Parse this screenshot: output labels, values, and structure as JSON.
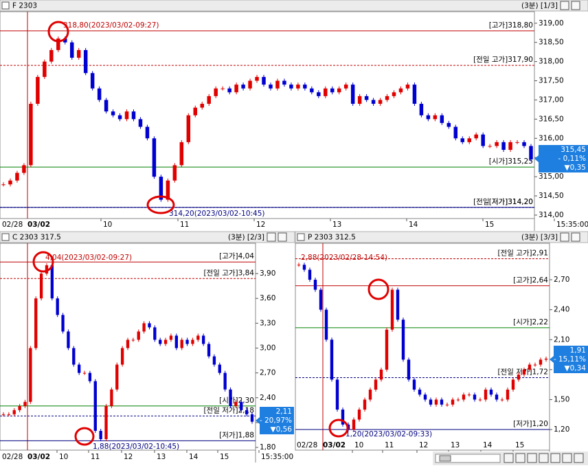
{
  "windows": [
    {
      "title": "F 2303",
      "period": "(3분) [1/3]",
      "ylim": [
        313.91,
        319.3
      ],
      "yticks": [
        {
          "value": 319,
          "label": "319,00"
        },
        {
          "value": 318.5,
          "label": "318,50"
        },
        {
          "value": 318,
          "label": "318,00"
        },
        {
          "value": 317.5,
          "label": "317,50"
        },
        {
          "value": 317,
          "label": "317,00"
        },
        {
          "value": 316.5,
          "label": "316,50"
        },
        {
          "value": 316,
          "label": "316,00"
        },
        {
          "value": 315.5,
          "label": "315,50"
        },
        {
          "value": 315,
          "label": "315,00"
        },
        {
          "value": 314.5,
          "label": "314,50"
        },
        {
          "value": 314,
          "label": "314,00"
        }
      ],
      "xlabels": [
        "02/28",
        "03/02",
        "10",
        "11",
        "12",
        "13",
        "14",
        "15",
        "15:35:00"
      ],
      "reflines": [
        {
          "label": "[고가]318,80",
          "value": 318.8,
          "color": "#c00000",
          "style": "solid"
        },
        {
          "label": "[전일 고가]317,90",
          "value": 317.9,
          "color": "#c00000",
          "style": "dashed"
        },
        {
          "label": "[시가]315,25",
          "value": 315.25,
          "color": "#008000",
          "style": "solid"
        },
        {
          "label": "[저가]314,20",
          "value": 314.2,
          "color": "#000080",
          "style": "solid"
        },
        {
          "label": "[전일 저가]314,20",
          "value": 314.2,
          "color": "#000080",
          "style": "dashed"
        }
      ],
      "high_note": "318,80(2023/03/02-09:27)",
      "low_note": "314,20(2023/03/02-10:45)",
      "price_box": [
        "315,45",
        "- 0,11%",
        "▼0,35"
      ],
      "closes": [
        314.8,
        314.9,
        315.1,
        315.3,
        316.9,
        317.6,
        318.0,
        318.3,
        318.6,
        318.5,
        318.1,
        318.3,
        317.7,
        317.3,
        317.0,
        316.7,
        316.6,
        316.5,
        316.7,
        316.5,
        316.3,
        316.0,
        315.0,
        314.4,
        314.9,
        315.3,
        315.9,
        316.6,
        316.8,
        316.9,
        317.1,
        317.3,
        317.3,
        317.2,
        317.4,
        317.3,
        317.5,
        317.6,
        317.4,
        317.3,
        317.5,
        317.4,
        317.3,
        317.4,
        317.3,
        317.2,
        317.1,
        317.3,
        317.2,
        317.3,
        317.4,
        316.9,
        317.1,
        317.0,
        316.9,
        317.0,
        317.1,
        317.2,
        317.3,
        317.4,
        316.9,
        316.6,
        316.5,
        316.6,
        316.4,
        316.3,
        316.0,
        315.9,
        316.0,
        316.1,
        315.8,
        315.8,
        315.9,
        315.7,
        315.9,
        315.9,
        315.8,
        315.45
      ]
    },
    {
      "title": "C 2303 317.5",
      "period": "(3분) [2/3]",
      "ylim": [
        1.767,
        4.266
      ],
      "yticks": [
        {
          "value": 3.9,
          "label": "3,90"
        },
        {
          "value": 3.6,
          "label": "3,60"
        },
        {
          "value": 3.3,
          "label": "3,30"
        },
        {
          "value": 3.0,
          "label": "3,00"
        },
        {
          "value": 2.7,
          "label": "2,70"
        },
        {
          "value": 2.4,
          "label": "2,40"
        },
        {
          "value": 2.1,
          "label": "2,10"
        },
        {
          "value": 1.8,
          "label": "1,80"
        }
      ],
      "xlabels": [
        "02/28",
        "03/02",
        "10",
        "11",
        "12",
        "13",
        "14",
        "15",
        "15:35:00"
      ],
      "reflines": [
        {
          "label": "[고가]4,04",
          "value": 4.04,
          "color": "#c00000",
          "style": "solid"
        },
        {
          "label": "[전일 고가]3,84",
          "value": 3.84,
          "color": "#c00000",
          "style": "dashed"
        },
        {
          "label": "[시가]2,30",
          "value": 2.3,
          "color": "#008000",
          "style": "solid"
        },
        {
          "label": "[전일 저가]2,18",
          "value": 2.18,
          "color": "#000080",
          "style": "dashed"
        },
        {
          "label": "[저가]1,88",
          "value": 1.88,
          "color": "#000080",
          "style": "solid"
        }
      ],
      "high_note": "4,04(2023/03/02-09:27)",
      "low_note": "1,88(2023/03/02-10:45)",
      "price_box": [
        "2,11",
        "- 20,97%",
        "▼0,56"
      ],
      "closes": [
        2.2,
        2.2,
        2.25,
        2.3,
        2.35,
        3.0,
        3.6,
        3.9,
        4.0,
        3.6,
        3.4,
        3.2,
        3.0,
        2.8,
        2.7,
        2.7,
        2.6,
        2.0,
        1.9,
        2.3,
        2.5,
        2.8,
        3.0,
        3.1,
        3.1,
        3.2,
        3.3,
        3.25,
        3.1,
        3.05,
        3.1,
        3.15,
        3.0,
        3.1,
        3.05,
        3.1,
        3.15,
        3.05,
        2.9,
        2.8,
        2.7,
        2.5,
        2.3,
        2.35,
        2.25,
        2.2,
        2.11
      ]
    },
    {
      "title": "P 2303 312.5",
      "period": "(3분) [3/3]",
      "ylim": [
        0.994,
        3.065
      ],
      "yticks": [
        {
          "value": 2.7,
          "label": "2,70"
        },
        {
          "value": 2.4,
          "label": "2,40"
        },
        {
          "value": 2.1,
          "label": "2,10"
        },
        {
          "value": 1.8,
          "label": "1,80"
        },
        {
          "value": 1.5,
          "label": "1,50"
        },
        {
          "value": 1.2,
          "label": "1,20"
        }
      ],
      "xlabels": [
        "02/28",
        "03/02",
        "10",
        "11",
        "12",
        "13",
        "14",
        "15"
      ],
      "reflines": [
        {
          "label": "[전일 고가]2,91",
          "value": 2.91,
          "color": "#c00000",
          "style": "dashed"
        },
        {
          "label": "[고가]2,64",
          "value": 2.64,
          "color": "#c00000",
          "style": "solid"
        },
        {
          "label": "[시가]2,22",
          "value": 2.22,
          "color": "#008000",
          "style": "solid"
        },
        {
          "label": "[전일 저가]1,72",
          "value": 1.72,
          "color": "#000080",
          "style": "dashed"
        },
        {
          "label": "[저가]1,20",
          "value": 1.2,
          "color": "#000080",
          "style": "solid"
        }
      ],
      "high_note": "2,88(2023/02/28-14:54)",
      "low_note": "1,20(2023/03/02-09:33)",
      "price_box": [
        "1,91",
        "- 15,11%",
        "▼0,34"
      ],
      "closes": [
        2.85,
        2.8,
        2.7,
        2.6,
        2.4,
        2.1,
        1.7,
        1.4,
        1.25,
        1.2,
        1.3,
        1.4,
        1.5,
        1.6,
        1.7,
        1.8,
        2.2,
        2.6,
        2.3,
        1.9,
        1.7,
        1.6,
        1.55,
        1.5,
        1.45,
        1.5,
        1.45,
        1.45,
        1.5,
        1.5,
        1.55,
        1.55,
        1.5,
        1.5,
        1.6,
        1.55,
        1.5,
        1.5,
        1.6,
        1.7,
        1.75,
        1.8,
        1.85,
        1.85,
        1.9,
        1.91
      ]
    }
  ]
}
